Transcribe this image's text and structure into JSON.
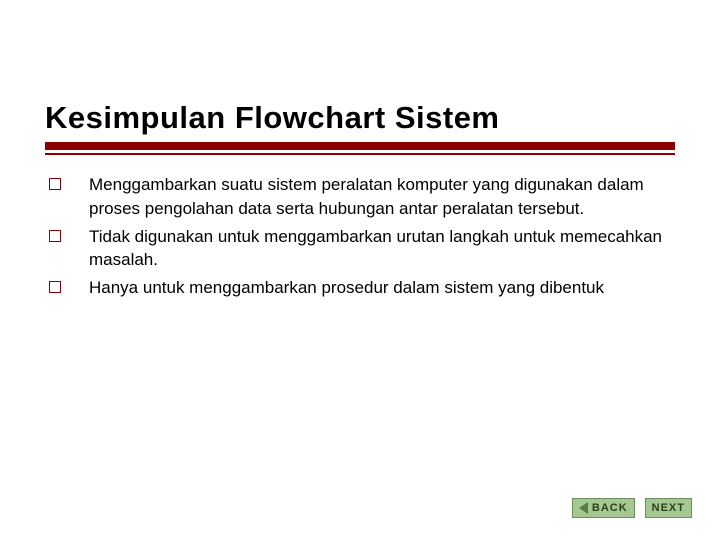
{
  "title": "Kesimpulan Flowchart Sistem",
  "underline_color": "#8b0000",
  "bullet_border_color": "#8b0000",
  "bullets": [
    "Menggambarkan suatu sistem peralatan komputer yang digunakan dalam proses pengolahan data serta hubungan antar peralatan tersebut.",
    "Tidak digunakan untuk menggambarkan urutan langkah untuk memecahkan masalah.",
    "Hanya untuk menggambarkan prosedur dalam sistem yang dibentuk"
  ],
  "nav": {
    "back_label": "BACK",
    "next_label": "NEXT",
    "button_bg": "#a4c88f",
    "button_border": "#6b8e5a",
    "button_text_color": "#2d4020",
    "arrow_color": "#5a7a47"
  },
  "title_fontsize": 31,
  "body_fontsize": 17,
  "background_color": "#ffffff"
}
